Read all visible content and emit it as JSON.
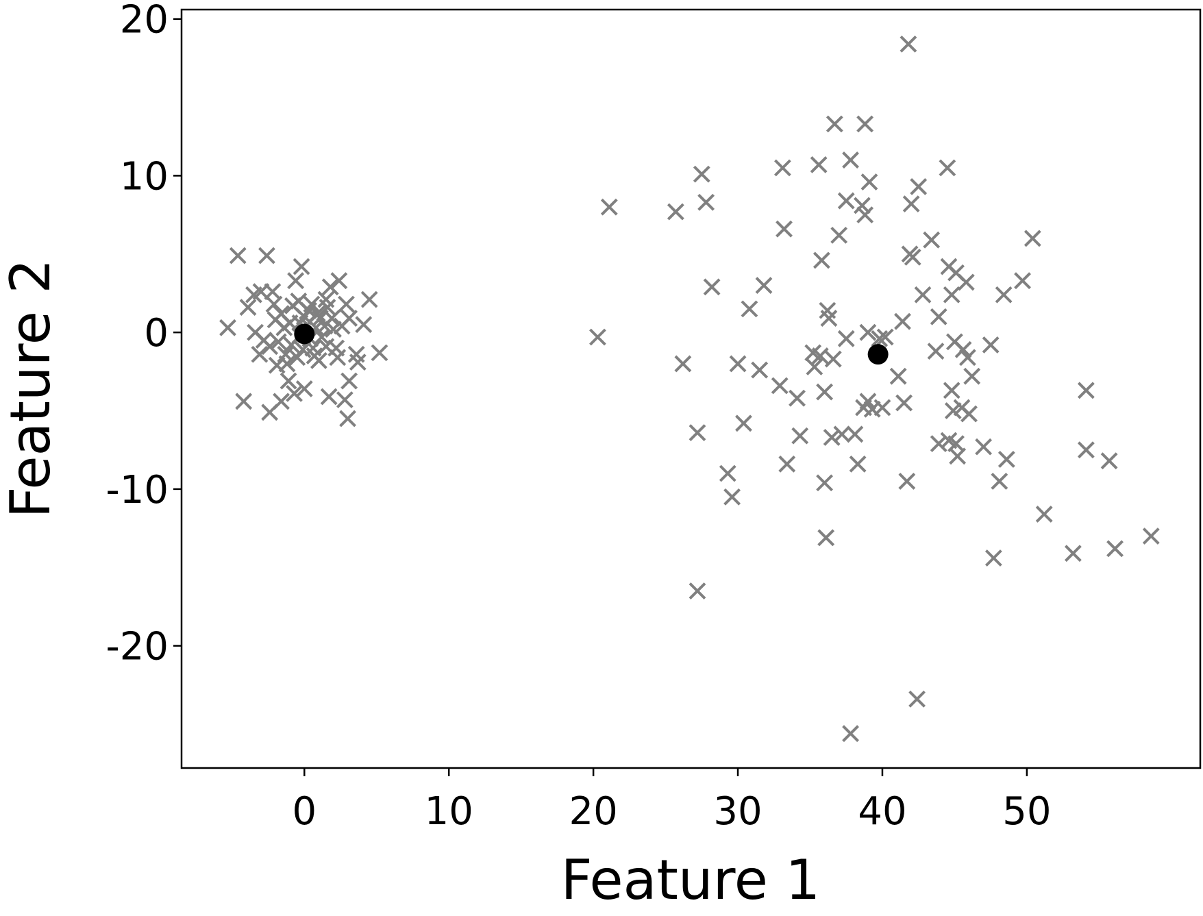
{
  "chart_data": {
    "type": "scatter",
    "title": "",
    "xlabel": "Feature 1",
    "ylabel": "Feature 2",
    "xlim": [
      -8.5,
      62
    ],
    "ylim": [
      -27.8,
      20.6
    ],
    "xticks": [
      0,
      10,
      20,
      30,
      40,
      50
    ],
    "xtick_labels": [
      "0",
      "10",
      "20",
      "30",
      "40",
      "50"
    ],
    "yticks": [
      -20,
      -10,
      0,
      10,
      20
    ],
    "ytick_labels": [
      "-20",
      "-10",
      "0",
      "10",
      "20"
    ],
    "grid": false,
    "legend": "none",
    "colors": {
      "points": "#808080",
      "centers": "#000000"
    },
    "series": [
      {
        "marker": "x",
        "points": [
          [
            -5.3,
            0.3
          ],
          [
            -4.6,
            4.9
          ],
          [
            -4.2,
            -4.4
          ],
          [
            -2.6,
            4.9
          ],
          [
            -3.5,
            2.4
          ],
          [
            -3.0,
            2.6
          ],
          [
            -2.2,
            2.6
          ],
          [
            -3.9,
            1.6
          ],
          [
            -3.4,
            0.0
          ],
          [
            -2.8,
            -0.5
          ],
          [
            -3.1,
            -1.4
          ],
          [
            -2.4,
            -5.1
          ],
          [
            -1.6,
            -4.4
          ],
          [
            -1.1,
            -3.1
          ],
          [
            -0.7,
            -3.9
          ],
          [
            0.0,
            -3.6
          ],
          [
            -0.6,
            3.3
          ],
          [
            -0.2,
            4.2
          ],
          [
            0.5,
            1.8
          ],
          [
            -1.0,
            0.6
          ],
          [
            -2.0,
            0.8
          ],
          [
            -1.8,
            -0.6
          ],
          [
            -1.2,
            -2.0
          ],
          [
            -0.5,
            -1.6
          ],
          [
            0.6,
            -1.0
          ],
          [
            1.1,
            0.9
          ],
          [
            1.5,
            2.1
          ],
          [
            1.8,
            2.9
          ],
          [
            2.4,
            3.3
          ],
          [
            2.9,
            1.8
          ],
          [
            3.1,
            0.9
          ],
          [
            2.0,
            0.2
          ],
          [
            1.5,
            -0.9
          ],
          [
            2.3,
            -1.6
          ],
          [
            1.7,
            -4.1
          ],
          [
            2.8,
            -4.3
          ],
          [
            3.1,
            -3.1
          ],
          [
            3.0,
            -5.5
          ],
          [
            3.7,
            -1.9
          ],
          [
            4.1,
            0.5
          ],
          [
            4.5,
            2.1
          ],
          [
            5.2,
            -1.3
          ],
          [
            3.6,
            -1.4
          ],
          [
            1.0,
            -1.8
          ],
          [
            0.8,
            0.3
          ],
          [
            0.3,
            1.4
          ],
          [
            -0.3,
            0.6
          ],
          [
            -1.4,
            0.3
          ],
          [
            -0.9,
            -0.8
          ],
          [
            -0.1,
            -1.1
          ],
          [
            0.4,
            -0.4
          ],
          [
            1.2,
            -0.3
          ],
          [
            -1.6,
            1.2
          ],
          [
            -0.4,
            2.0
          ],
          [
            0.9,
            1.2
          ],
          [
            1.9,
            0.9
          ],
          [
            2.6,
            0.4
          ],
          [
            -2.4,
            -0.9
          ],
          [
            -1.3,
            -1.4
          ],
          [
            0.2,
            0.5
          ],
          [
            -0.8,
            1.7
          ],
          [
            1.4,
            0.4
          ],
          [
            0.0,
            1.0
          ],
          [
            -0.3,
            -0.2
          ],
          [
            0.7,
            -1.5
          ],
          [
            -1.9,
            -2.1
          ],
          [
            2.2,
            -1.0
          ],
          [
            1.6,
            1.6
          ],
          [
            -2.1,
            1.8
          ],
          [
            20.3,
            -0.3
          ],
          [
            21.1,
            8.0
          ],
          [
            25.7,
            7.7
          ],
          [
            26.2,
            -2.0
          ],
          [
            27.2,
            -6.4
          ],
          [
            27.2,
            -16.5
          ],
          [
            27.5,
            10.1
          ],
          [
            27.8,
            8.3
          ],
          [
            28.2,
            2.9
          ],
          [
            29.3,
            -9.0
          ],
          [
            29.6,
            -10.5
          ],
          [
            30.0,
            -2.0
          ],
          [
            30.4,
            -5.8
          ],
          [
            30.8,
            1.5
          ],
          [
            31.5,
            -2.4
          ],
          [
            31.8,
            3.0
          ],
          [
            32.9,
            -3.4
          ],
          [
            33.1,
            10.5
          ],
          [
            33.2,
            6.6
          ],
          [
            33.4,
            -8.4
          ],
          [
            34.1,
            -4.2
          ],
          [
            34.3,
            -6.6
          ],
          [
            35.2,
            -1.3
          ],
          [
            35.3,
            -2.2
          ],
          [
            35.6,
            10.7
          ],
          [
            35.7,
            -1.5
          ],
          [
            35.8,
            4.6
          ],
          [
            36.0,
            -3.8
          ],
          [
            36.0,
            -9.6
          ],
          [
            36.1,
            -13.1
          ],
          [
            36.2,
            1.4
          ],
          [
            36.3,
            0.9
          ],
          [
            36.5,
            -6.7
          ],
          [
            36.6,
            -1.7
          ],
          [
            36.7,
            13.3
          ],
          [
            37.0,
            6.2
          ],
          [
            37.2,
            -6.5
          ],
          [
            37.5,
            -0.4
          ],
          [
            37.5,
            8.4
          ],
          [
            37.8,
            11.0
          ],
          [
            37.8,
            -25.6
          ],
          [
            38.1,
            -6.5
          ],
          [
            38.3,
            -8.4
          ],
          [
            38.6,
            8.1
          ],
          [
            38.7,
            -4.8
          ],
          [
            38.8,
            13.3
          ],
          [
            38.8,
            7.5
          ],
          [
            39.0,
            -4.4
          ],
          [
            39.0,
            0.0
          ],
          [
            39.1,
            9.6
          ],
          [
            39.3,
            -4.9
          ],
          [
            39.8,
            -0.4
          ],
          [
            40.0,
            -4.8
          ],
          [
            40.2,
            -0.3
          ],
          [
            41.1,
            -2.8
          ],
          [
            41.4,
            0.7
          ],
          [
            41.5,
            -4.5
          ],
          [
            41.7,
            -9.5
          ],
          [
            41.8,
            18.4
          ],
          [
            41.9,
            5.0
          ],
          [
            42.0,
            8.2
          ],
          [
            42.1,
            4.8
          ],
          [
            42.4,
            -23.4
          ],
          [
            42.5,
            9.3
          ],
          [
            42.8,
            2.4
          ],
          [
            43.4,
            5.9
          ],
          [
            43.7,
            -1.2
          ],
          [
            43.9,
            1.0
          ],
          [
            43.9,
            -7.1
          ],
          [
            44.5,
            10.5
          ],
          [
            44.6,
            -6.9
          ],
          [
            44.6,
            4.2
          ],
          [
            44.8,
            2.4
          ],
          [
            44.8,
            -3.7
          ],
          [
            44.9,
            -5.0
          ],
          [
            45.0,
            -0.6
          ],
          [
            45.1,
            3.8
          ],
          [
            45.1,
            -7.1
          ],
          [
            45.2,
            -7.9
          ],
          [
            45.5,
            -4.8
          ],
          [
            45.6,
            -1.1
          ],
          [
            45.8,
            3.2
          ],
          [
            45.9,
            -1.6
          ],
          [
            46.0,
            -5.2
          ],
          [
            46.2,
            -2.8
          ],
          [
            47.0,
            -7.3
          ],
          [
            47.5,
            -0.8
          ],
          [
            47.7,
            -14.4
          ],
          [
            48.1,
            -9.5
          ],
          [
            48.4,
            2.4
          ],
          [
            48.6,
            -8.1
          ],
          [
            49.7,
            3.3
          ],
          [
            50.4,
            6.0
          ],
          [
            51.2,
            -11.6
          ],
          [
            53.2,
            -14.1
          ],
          [
            54.1,
            -3.7
          ],
          [
            54.1,
            -7.5
          ],
          [
            55.7,
            -8.2
          ],
          [
            56.1,
            -13.8
          ],
          [
            58.6,
            -13.0
          ]
        ]
      },
      {
        "marker": "o",
        "points": [
          [
            0.0,
            -0.1
          ],
          [
            39.7,
            -1.4
          ]
        ]
      }
    ]
  }
}
